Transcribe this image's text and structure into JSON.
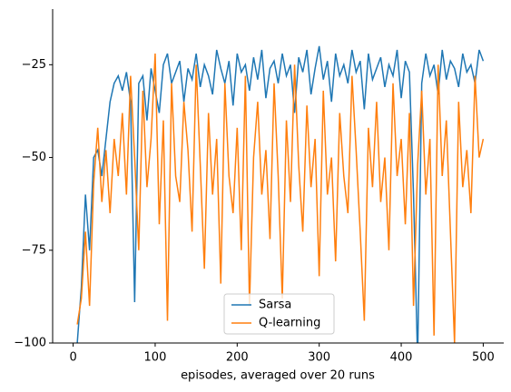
{
  "chart_data": {
    "type": "line",
    "xlabel": "episodes, averaged over 20 runs",
    "x": [
      5,
      10,
      15,
      20,
      25,
      30,
      35,
      40,
      45,
      50,
      55,
      60,
      65,
      70,
      75,
      80,
      85,
      90,
      95,
      100,
      105,
      110,
      115,
      120,
      125,
      130,
      135,
      140,
      145,
      150,
      155,
      160,
      165,
      170,
      175,
      180,
      185,
      190,
      195,
      200,
      205,
      210,
      215,
      220,
      225,
      230,
      235,
      240,
      245,
      250,
      255,
      260,
      265,
      270,
      275,
      280,
      285,
      290,
      295,
      300,
      305,
      310,
      315,
      320,
      325,
      330,
      335,
      340,
      345,
      350,
      355,
      360,
      365,
      370,
      375,
      380,
      385,
      390,
      395,
      400,
      405,
      410,
      415,
      420,
      425,
      430,
      435,
      440,
      445,
      450,
      455,
      460,
      465,
      470,
      475,
      480,
      485,
      490,
      495,
      500
    ],
    "series": [
      {
        "name": "Sarsa",
        "color": "#1f77b4",
        "values": [
          -100,
          -85,
          -60,
          -75,
          -50,
          -48,
          -55,
          -45,
          -35,
          -30,
          -28,
          -32,
          -27,
          -35,
          -89,
          -30,
          -28,
          -40,
          -26,
          -32,
          -38,
          -25,
          -22,
          -30,
          -27,
          -24,
          -35,
          -26,
          -29,
          -22,
          -31,
          -25,
          -28,
          -33,
          -21,
          -26,
          -30,
          -24,
          -36,
          -22,
          -27,
          -25,
          -32,
          -23,
          -29,
          -21,
          -34,
          -26,
          -24,
          -30,
          -22,
          -28,
          -25,
          -38,
          -23,
          -27,
          -21,
          -33,
          -26,
          -20,
          -29,
          -24,
          -35,
          -22,
          -28,
          -25,
          -30,
          -21,
          -27,
          -24,
          -37,
          -22,
          -29,
          -26,
          -23,
          -31,
          -25,
          -28,
          -21,
          -34,
          -24,
          -27,
          -60,
          -105,
          -30,
          -22,
          -28,
          -25,
          -33,
          -21,
          -29,
          -24,
          -26,
          -31,
          -22,
          -27,
          -25,
          -30,
          -21,
          -24
        ]
      },
      {
        "name": "Q-learning",
        "color": "#ff7f0e",
        "values": [
          -95,
          -88,
          -70,
          -90,
          -57,
          -42,
          -62,
          -48,
          -65,
          -45,
          -55,
          -38,
          -60,
          -28,
          -50,
          -75,
          -32,
          -58,
          -45,
          -22,
          -68,
          -40,
          -94,
          -30,
          -55,
          -62,
          -35,
          -48,
          -70,
          -25,
          -52,
          -80,
          -38,
          -60,
          -45,
          -84,
          -30,
          -55,
          -65,
          -42,
          -75,
          -28,
          -90,
          -50,
          -35,
          -60,
          -48,
          -72,
          -30,
          -55,
          -88,
          -40,
          -62,
          -25,
          -52,
          -70,
          -36,
          -58,
          -45,
          -82,
          -32,
          -60,
          -50,
          -78,
          -38,
          -55,
          -65,
          -28,
          -48,
          -70,
          -94,
          -42,
          -58,
          -35,
          -62,
          -50,
          -75,
          -30,
          -55,
          -45,
          -68,
          -38,
          -90,
          -52,
          -32,
          -60,
          -45,
          -98,
          -25,
          -55,
          -40,
          -70,
          -100,
          -35,
          -58,
          -48,
          -65,
          -28,
          -50,
          -45
        ]
      }
    ],
    "xlim": [
      -25,
      525
    ],
    "xticks": [
      0,
      100,
      200,
      300,
      400,
      500
    ],
    "ylim": [
      -100,
      -10
    ],
    "yticks": [
      {
        "value": -100,
        "label": "−100"
      },
      {
        "value": -75,
        "label": "−75"
      },
      {
        "value": -50,
        "label": "−50"
      },
      {
        "value": -25,
        "label": "−25"
      }
    ],
    "legend": "lower center"
  }
}
